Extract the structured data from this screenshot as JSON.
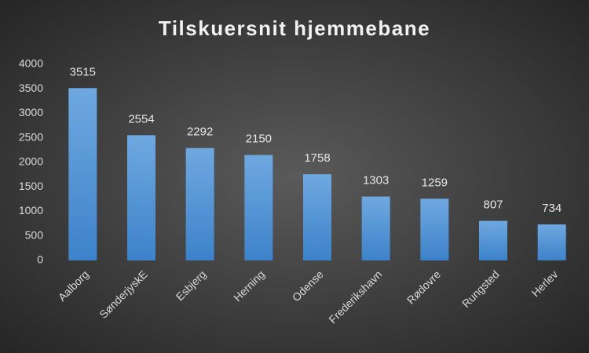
{
  "chart_data": {
    "type": "bar",
    "title": "Tilskuersnit hjemmebane",
    "categories": [
      "Aalborg",
      "SønderjyskE",
      "Esbjerg",
      "Herning",
      "Odense",
      "Frederikshavn",
      "Rødovre",
      "Rungsted",
      "Herlev"
    ],
    "values": [
      3515,
      2554,
      2292,
      2150,
      1758,
      1303,
      1259,
      807,
      734
    ],
    "color": "#5b9bd5",
    "ylim": [
      0,
      4000
    ],
    "yticks": [
      0,
      500,
      1000,
      1500,
      2000,
      2500,
      3000,
      3500,
      4000
    ],
    "grid": false
  }
}
